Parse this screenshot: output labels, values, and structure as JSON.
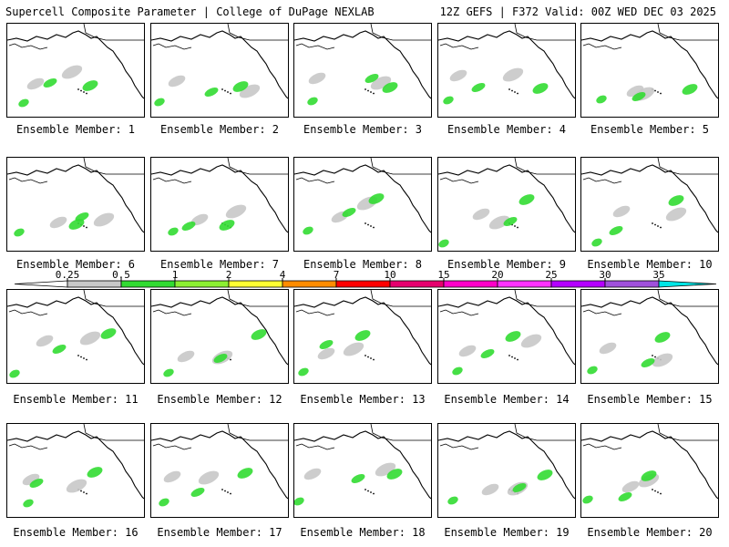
{
  "header": {
    "title": "Supercell Composite Parameter | College of DuPage NEXLAB",
    "run_info": "12Z GEFS | F372 Valid: 00Z WED DEC 03 2025"
  },
  "panels": [
    {
      "label": "Ensemble Member: 1"
    },
    {
      "label": "Ensemble Member: 2"
    },
    {
      "label": "Ensemble Member: 3"
    },
    {
      "label": "Ensemble Member: 4"
    },
    {
      "label": "Ensemble Member: 5"
    },
    {
      "label": "Ensemble Member: 6"
    },
    {
      "label": "Ensemble Member: 7"
    },
    {
      "label": "Ensemble Member: 8"
    },
    {
      "label": "Ensemble Member: 9"
    },
    {
      "label": "Ensemble Member: 10"
    },
    {
      "label": "Ensemble Member: 11"
    },
    {
      "label": "Ensemble Member: 12"
    },
    {
      "label": "Ensemble Member: 13"
    },
    {
      "label": "Ensemble Member: 14"
    },
    {
      "label": "Ensemble Member: 15"
    },
    {
      "label": "Ensemble Member: 16"
    },
    {
      "label": "Ensemble Member: 17"
    },
    {
      "label": "Ensemble Member: 18"
    },
    {
      "label": "Ensemble Member: 19"
    },
    {
      "label": "Ensemble Member: 20"
    }
  ],
  "colorbar": {
    "ticks": [
      "0.25",
      "0.5",
      "1",
      "2",
      "4",
      "7",
      "10",
      "15",
      "20",
      "25",
      "30",
      "35"
    ],
    "colors": [
      "#c8c8c8",
      "#32dc32",
      "#8cf032",
      "#ffff32",
      "#ff8c00",
      "#ff0000",
      "#e6006e",
      "#ff00c8",
      "#ff32ff",
      "#b400ff",
      "#a050dc",
      "#00e6e6"
    ]
  }
}
